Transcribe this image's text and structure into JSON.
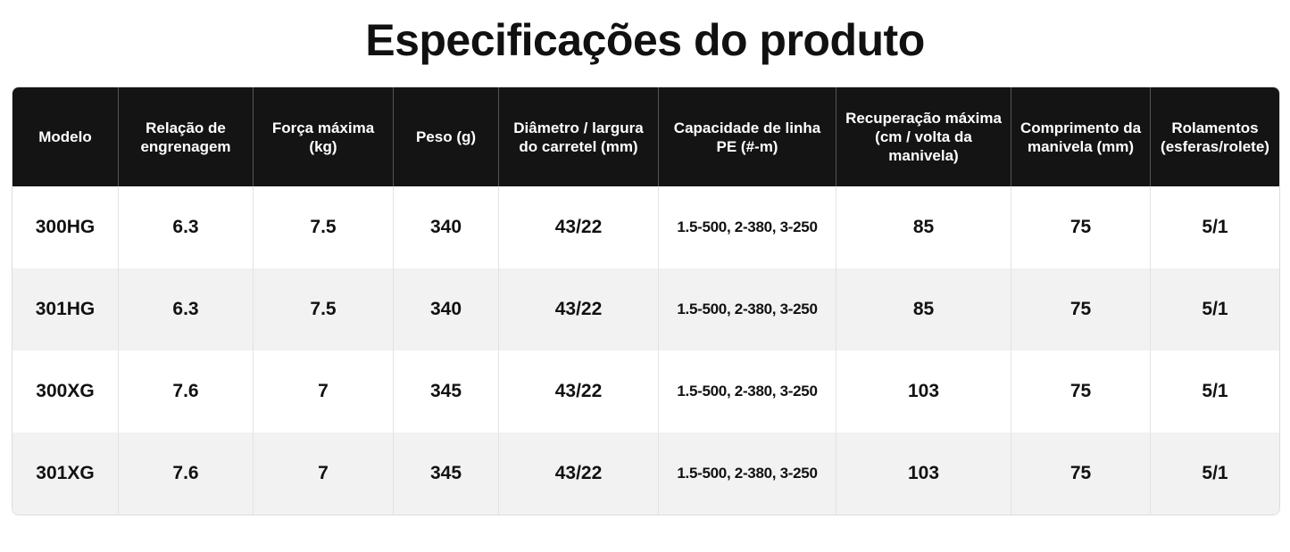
{
  "header": {
    "title": "Especificações do produto"
  },
  "table": {
    "columns": [
      "Modelo",
      "Relação de engrenagem",
      "Força máxima (kg)",
      "Peso (g)",
      "Diâmetro / largura do carretel (mm)",
      "Capacidade de linha PE (#-m)",
      "Recuperação máxima (cm / volta da manivela)",
      "Comprimento da manivela (mm)",
      "Rolamentos (esferas/rolete)"
    ],
    "rows": [
      [
        "300HG",
        "6.3",
        "7.5",
        "340",
        "43/22",
        "1.5-500, 2-380, 3-250",
        "85",
        "75",
        "5/1"
      ],
      [
        "301HG",
        "6.3",
        "7.5",
        "340",
        "43/22",
        "1.5-500, 2-380, 3-250",
        "85",
        "75",
        "5/1"
      ],
      [
        "300XG",
        "7.6",
        "7",
        "345",
        "43/22",
        "1.5-500, 2-380, 3-250",
        "103",
        "75",
        "5/1"
      ],
      [
        "301XG",
        "7.6",
        "7",
        "345",
        "43/22",
        "1.5-500, 2-380, 3-250",
        "103",
        "75",
        "5/1"
      ]
    ]
  }
}
